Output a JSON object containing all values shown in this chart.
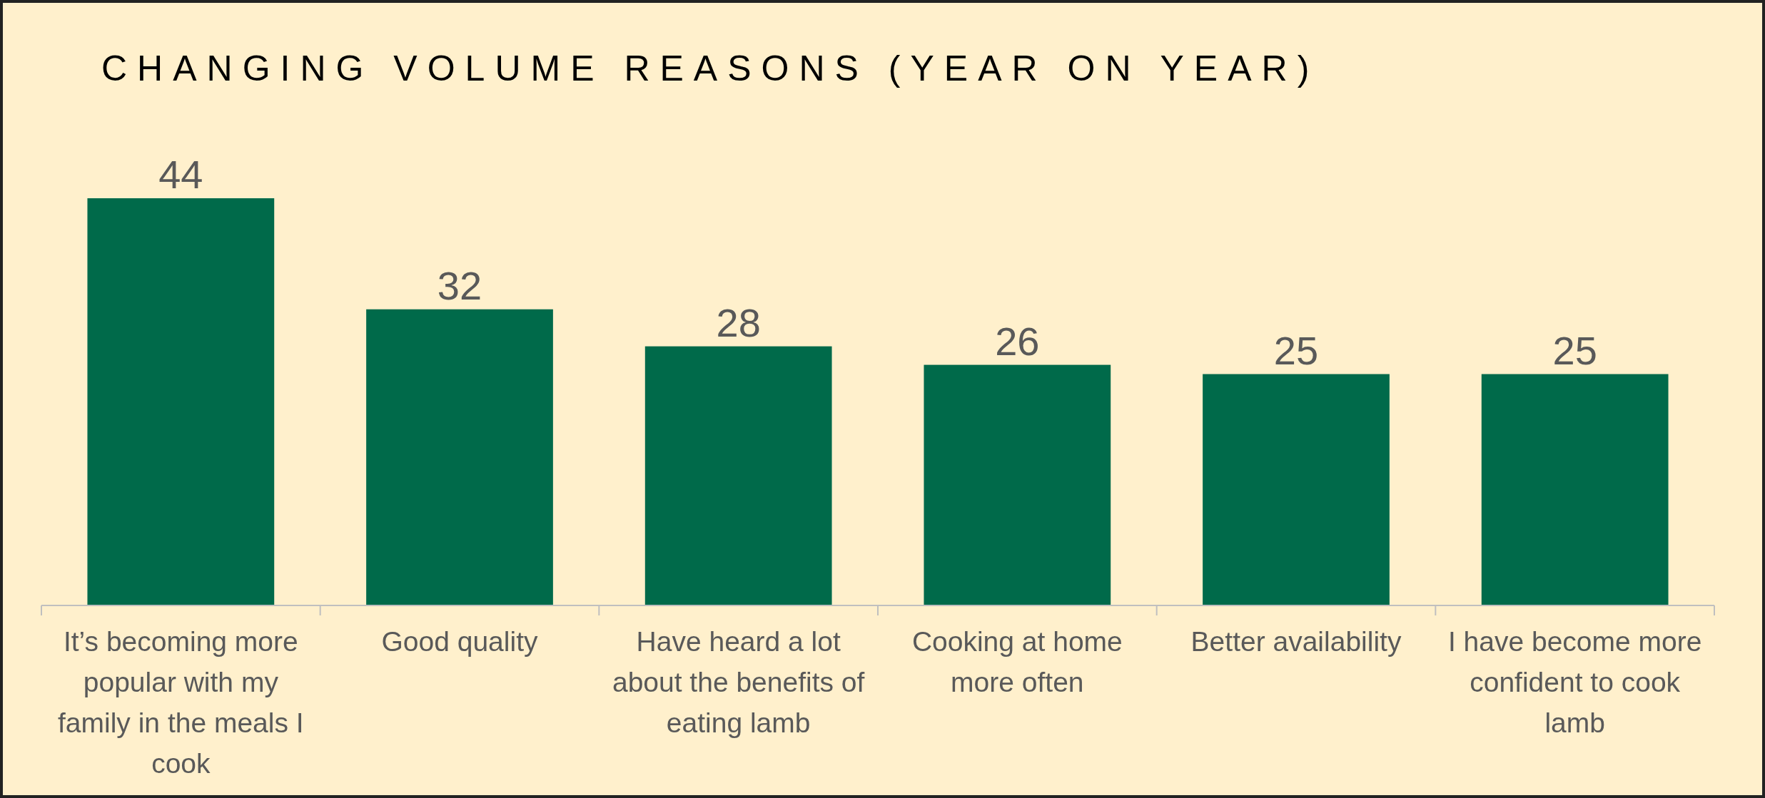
{
  "chart_data": {
    "type": "bar",
    "title": "CHANGING VOLUME REASONS (YEAR ON YEAR)",
    "categories": [
      "It’s becoming more popular with my family in the meals I cook",
      "Good quality",
      "Have heard a lot about the benefits of eating lamb",
      "Cooking at home more often",
      "Better availability",
      "I have become more confident to cook lamb"
    ],
    "values": [
      44,
      32,
      28,
      26,
      25,
      25
    ],
    "color": "#006a4a",
    "data_labels": true
  }
}
